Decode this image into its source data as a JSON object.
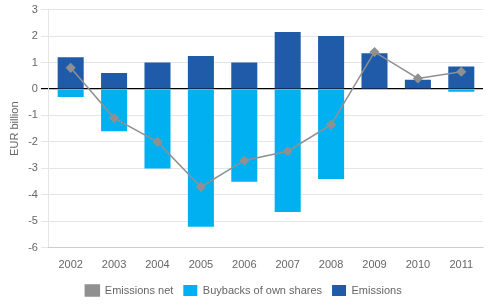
{
  "chart_data": {
    "type": "bar",
    "categories": [
      "2002",
      "2003",
      "2004",
      "2005",
      "2006",
      "2007",
      "2008",
      "2009",
      "2010",
      "2011"
    ],
    "series": [
      {
        "name": "Emissions",
        "type": "bar",
        "color": "#1f5ba8",
        "values": [
          1.2,
          0.6,
          1.0,
          1.25,
          1.0,
          2.15,
          2.0,
          1.35,
          0.35,
          0.85
        ]
      },
      {
        "name": "Buybacks of own shares",
        "type": "bar",
        "color": "#00b0f0",
        "values": [
          -0.3,
          -1.6,
          -3.0,
          -5.2,
          -3.5,
          -4.65,
          -3.4,
          0.0,
          0.0,
          -0.1
        ]
      },
      {
        "name": "Emissions net",
        "type": "line",
        "color": "#909090",
        "marker": "diamond",
        "values": [
          0.8,
          -1.1,
          -2.0,
          -3.7,
          -2.7,
          -2.35,
          -1.35,
          1.4,
          0.4,
          0.65
        ]
      }
    ],
    "ylabel": "EUR billion",
    "ylim": [
      -6,
      3
    ],
    "yticks": [
      -6,
      -5,
      -4,
      -3,
      -2,
      -1,
      0,
      1,
      2,
      3
    ],
    "grid": true,
    "legend": "bottom"
  }
}
